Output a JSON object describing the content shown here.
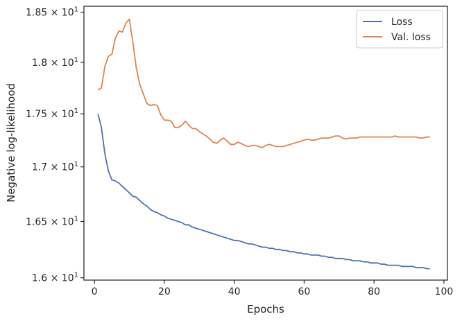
{
  "chart_data": {
    "type": "line",
    "title": "",
    "xlabel": "Epochs",
    "ylabel": "Negative log-likelihood",
    "xlim": [
      -3,
      101
    ],
    "ylim": [
      15.98,
      18.56
    ],
    "y_scale": "log",
    "x_ticks": [
      0,
      20,
      40,
      60,
      80,
      100
    ],
    "y_ticks": [
      {
        "value": 16.0,
        "mantissa": "1.6"
      },
      {
        "value": 16.5,
        "mantissa": "1.65"
      },
      {
        "value": 17.0,
        "mantissa": "1.7"
      },
      {
        "value": 17.5,
        "mantissa": "1.75"
      },
      {
        "value": 18.0,
        "mantissa": "1.8"
      },
      {
        "value": 18.5,
        "mantissa": "1.85"
      }
    ],
    "y_tick_suffix": "× 10",
    "y_tick_exponent": "1",
    "grid": false,
    "legend_position": "top-right",
    "series": [
      {
        "name": "Loss",
        "color": "#4c72b0",
        "x": [
          1,
          2,
          3,
          4,
          5,
          6,
          7,
          8,
          9,
          10,
          11,
          12,
          13,
          14,
          15,
          16,
          17,
          18,
          19,
          20,
          21,
          22,
          23,
          24,
          25,
          26,
          27,
          28,
          29,
          30,
          31,
          32,
          33,
          34,
          35,
          36,
          37,
          38,
          39,
          40,
          41,
          42,
          43,
          44,
          45,
          46,
          47,
          48,
          49,
          50,
          51,
          52,
          53,
          54,
          55,
          56,
          57,
          58,
          59,
          60,
          61,
          62,
          63,
          64,
          65,
          66,
          67,
          68,
          69,
          70,
          71,
          72,
          73,
          74,
          75,
          76,
          77,
          78,
          79,
          80,
          81,
          82,
          83,
          84,
          85,
          86,
          87,
          88,
          89,
          90,
          91,
          92,
          93,
          94,
          95,
          96
        ],
        "values": [
          17.5,
          17.37,
          17.12,
          16.96,
          16.88,
          16.87,
          16.85,
          16.82,
          16.79,
          16.76,
          16.73,
          16.72,
          16.69,
          16.66,
          16.64,
          16.61,
          16.59,
          16.58,
          16.56,
          16.55,
          16.53,
          16.52,
          16.51,
          16.5,
          16.49,
          16.47,
          16.47,
          16.45,
          16.44,
          16.43,
          16.42,
          16.41,
          16.4,
          16.39,
          16.38,
          16.37,
          16.36,
          16.35,
          16.34,
          16.33,
          16.33,
          16.32,
          16.31,
          16.3,
          16.3,
          16.29,
          16.28,
          16.27,
          16.27,
          16.26,
          16.26,
          16.25,
          16.25,
          16.24,
          16.24,
          16.23,
          16.23,
          16.22,
          16.22,
          16.21,
          16.21,
          16.2,
          16.2,
          16.2,
          16.19,
          16.19,
          16.18,
          16.18,
          16.17,
          16.17,
          16.17,
          16.16,
          16.16,
          16.15,
          16.15,
          16.15,
          16.14,
          16.14,
          16.13,
          16.13,
          16.13,
          16.12,
          16.12,
          16.11,
          16.11,
          16.11,
          16.11,
          16.1,
          16.1,
          16.1,
          16.1,
          16.09,
          16.09,
          16.09,
          16.08,
          16.08
        ]
      },
      {
        "name": "Val. loss",
        "color": "#dd8452",
        "x": [
          1,
          2,
          3,
          4,
          5,
          6,
          7,
          8,
          9,
          10,
          11,
          12,
          13,
          14,
          15,
          16,
          17,
          18,
          19,
          20,
          21,
          22,
          23,
          24,
          25,
          26,
          27,
          28,
          29,
          30,
          31,
          32,
          33,
          34,
          35,
          36,
          37,
          38,
          39,
          40,
          41,
          42,
          43,
          44,
          45,
          46,
          47,
          48,
          49,
          50,
          51,
          52,
          53,
          54,
          55,
          56,
          57,
          58,
          59,
          60,
          61,
          62,
          63,
          64,
          65,
          66,
          67,
          68,
          69,
          70,
          71,
          72,
          73,
          74,
          75,
          76,
          77,
          78,
          79,
          80,
          81,
          82,
          83,
          84,
          85,
          86,
          87,
          88,
          89,
          90,
          91,
          92,
          93,
          94,
          95,
          96
        ],
        "values": [
          17.73,
          17.75,
          17.96,
          18.06,
          18.08,
          18.24,
          18.31,
          18.3,
          18.39,
          18.43,
          18.2,
          17.94,
          17.78,
          17.69,
          17.6,
          17.58,
          17.59,
          17.58,
          17.49,
          17.44,
          17.44,
          17.43,
          17.37,
          17.37,
          17.39,
          17.43,
          17.39,
          17.36,
          17.36,
          17.33,
          17.31,
          17.29,
          17.26,
          17.23,
          17.22,
          17.25,
          17.27,
          17.24,
          17.21,
          17.21,
          17.23,
          17.22,
          17.2,
          17.19,
          17.2,
          17.2,
          17.19,
          17.18,
          17.2,
          17.21,
          17.2,
          17.19,
          17.19,
          17.19,
          17.2,
          17.21,
          17.22,
          17.23,
          17.24,
          17.25,
          17.26,
          17.25,
          17.25,
          17.26,
          17.27,
          17.27,
          17.27,
          17.28,
          17.29,
          17.29,
          17.27,
          17.26,
          17.27,
          17.27,
          17.27,
          17.28,
          17.28,
          17.28,
          17.28,
          17.28,
          17.28,
          17.28,
          17.28,
          17.28,
          17.28,
          17.29,
          17.28,
          17.28,
          17.28,
          17.28,
          17.28,
          17.28,
          17.27,
          17.27,
          17.28,
          17.28
        ]
      }
    ]
  }
}
